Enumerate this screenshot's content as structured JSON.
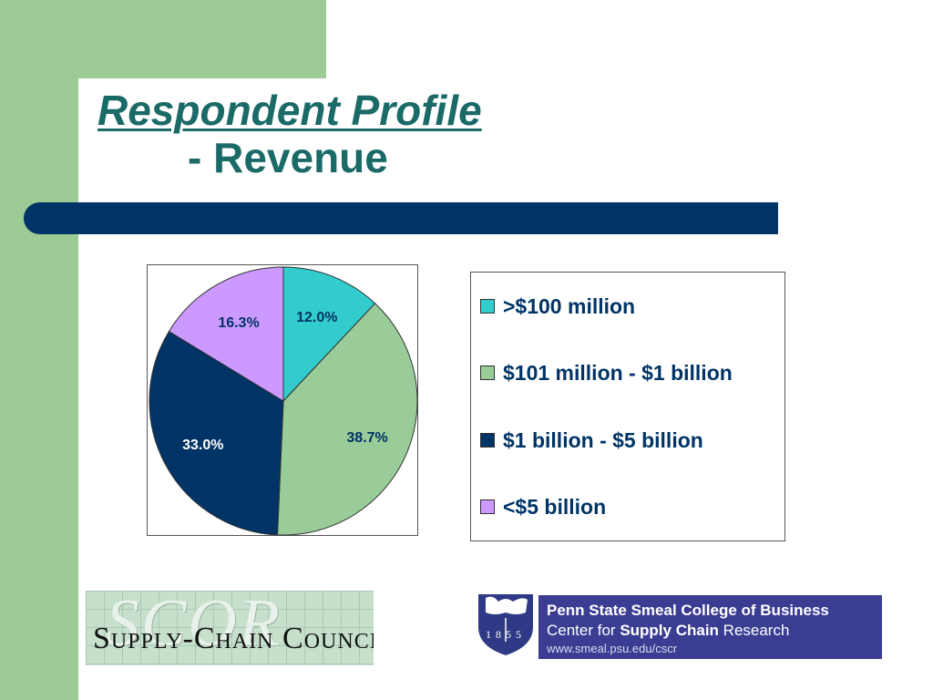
{
  "slide": {
    "title": "Respondent Profile",
    "subtitle": "- Revenue"
  },
  "chart_data": {
    "type": "pie",
    "categories": [
      ">$100 million",
      "$101 million - $1 billion",
      "$1 billion - $5 billion",
      "<$5 billion"
    ],
    "values": [
      12.0,
      38.7,
      33.0,
      16.3
    ],
    "value_labels": [
      "12.0%",
      "38.7%",
      "33.0%",
      "16.3%"
    ],
    "colors": [
      "#33cccc",
      "#99cc99",
      "#003366",
      "#cc99ff"
    ],
    "label_colors": [
      "#003366",
      "#003366",
      "#ffffff",
      "#003366"
    ],
    "start_angle_deg": 0,
    "direction": "clockwise",
    "legend_position": "right"
  },
  "logos": {
    "scor_big": "SCOR",
    "scor_small": "Supply-Chain Council",
    "psu_year": "1855",
    "psu_line1": "Penn State Smeal College of Business",
    "psu_line2_pre": "Center for ",
    "psu_line2_bold": "Supply Chain",
    "psu_line2_post": " Research",
    "psu_line3": "www.smeal.psu.edu/cscr"
  }
}
